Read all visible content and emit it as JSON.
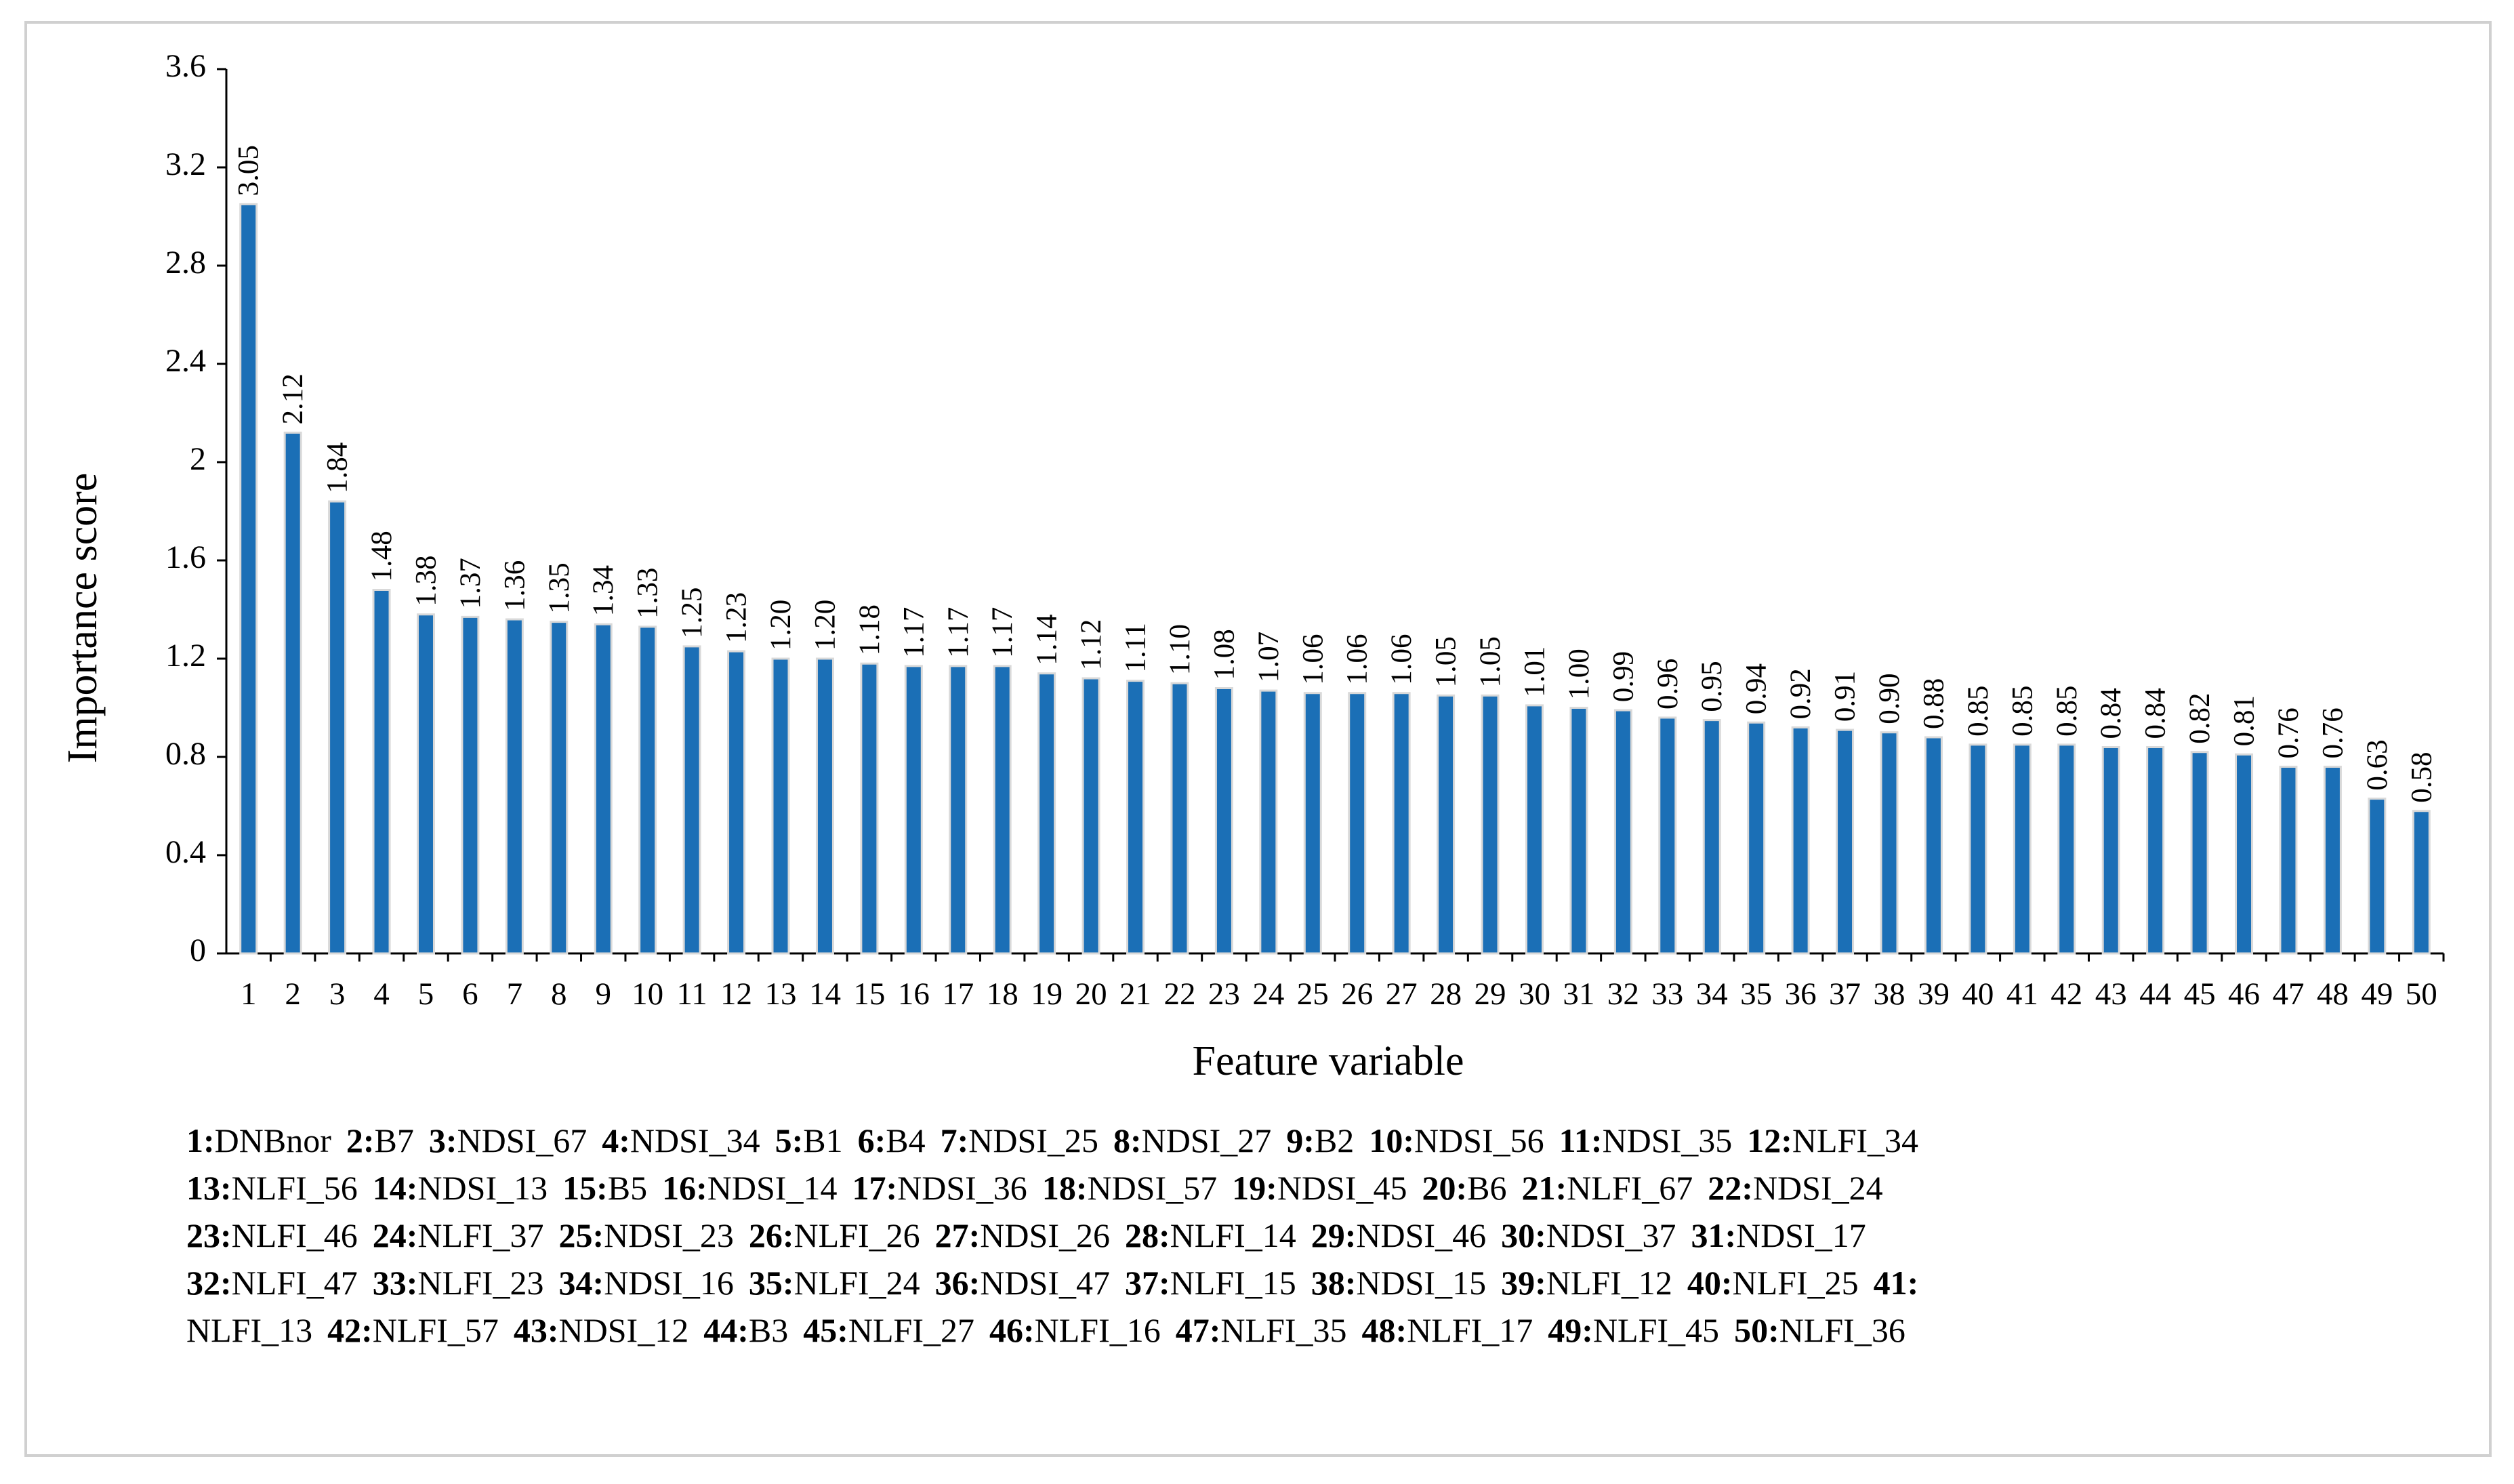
{
  "chart_data": {
    "type": "bar",
    "x_label": "Feature variable",
    "y_label": "Importance score",
    "categories": [
      "1",
      "2",
      "3",
      "4",
      "5",
      "6",
      "7",
      "8",
      "9",
      "10",
      "11",
      "12",
      "13",
      "14",
      "15",
      "16",
      "17",
      "18",
      "19",
      "20",
      "21",
      "22",
      "23",
      "24",
      "25",
      "26",
      "27",
      "28",
      "29",
      "30",
      "31",
      "32",
      "33",
      "34",
      "35",
      "36",
      "37",
      "38",
      "39",
      "40",
      "41",
      "42",
      "43",
      "44",
      "45",
      "46",
      "47",
      "48",
      "49",
      "50"
    ],
    "values": [
      3.05,
      2.12,
      1.84,
      1.48,
      1.38,
      1.37,
      1.36,
      1.35,
      1.34,
      1.33,
      1.25,
      1.23,
      1.2,
      1.2,
      1.18,
      1.17,
      1.17,
      1.17,
      1.14,
      1.12,
      1.11,
      1.1,
      1.08,
      1.07,
      1.06,
      1.06,
      1.06,
      1.05,
      1.05,
      1.01,
      1.0,
      0.99,
      0.96,
      0.95,
      0.94,
      0.92,
      0.91,
      0.9,
      0.88,
      0.85,
      0.85,
      0.85,
      0.84,
      0.84,
      0.82,
      0.81,
      0.76,
      0.76,
      0.63,
      0.58
    ],
    "value_labels": [
      "3.05",
      "2.12",
      "1.84",
      "1.48",
      "1.38",
      "1.37",
      "1.36",
      "1.35",
      "1.34",
      "1.33",
      "1.25",
      "1.23",
      "1.20",
      "1.20",
      "1.18",
      "1.17",
      "1.17",
      "1.17",
      "1.14",
      "1.12",
      "1.11",
      "1.10",
      "1.08",
      "1.07",
      "1.06",
      "1.06",
      "1.06",
      "1.05",
      "1.05",
      "1.01",
      "1.00",
      "0.99",
      "0.96",
      "0.95",
      "0.94",
      "0.92",
      "0.91",
      "0.90",
      "0.88",
      "0.85",
      "0.85",
      "0.85",
      "0.84",
      "0.84",
      "0.82",
      "0.81",
      "0.76",
      "0.76",
      "0.63",
      "0.58"
    ],
    "color": "#1b6fb6",
    "ylim": [
      0,
      3.6
    ],
    "yticks": [
      0,
      0.4,
      0.8,
      1.2,
      1.6,
      2,
      2.4,
      2.8,
      3.2,
      3.6
    ],
    "notes": [
      [
        {
          "key": "1:",
          "label": "DNBnor"
        },
        {
          "key": "2:",
          "label": "B7"
        },
        {
          "key": "3:",
          "label": "NDSI_67"
        },
        {
          "key": "4:",
          "label": "NDSI_34"
        },
        {
          "key": "5:",
          "label": "B1"
        },
        {
          "key": "6:",
          "label": "B4"
        },
        {
          "key": "7:",
          "label": "NDSI_25"
        },
        {
          "key": "8:",
          "label": "NDSI_27"
        },
        {
          "key": "9:",
          "label": "B2"
        },
        {
          "key": "10:",
          "label": "NDSI_56"
        },
        {
          "key": "11:",
          "label": "NDSI_35"
        },
        {
          "key": "12:",
          "label": "NLFI_34"
        }
      ],
      [
        {
          "key": "13:",
          "label": "NLFI_56"
        },
        {
          "key": "14:",
          "label": "NDSI_13"
        },
        {
          "key": "15:",
          "label": "B5"
        },
        {
          "key": "16:",
          "label": "NDSI_14"
        },
        {
          "key": "17:",
          "label": "NDSI_36"
        },
        {
          "key": "18:",
          "label": "NDSI_57"
        },
        {
          "key": "19:",
          "label": "NDSI_45"
        },
        {
          "key": "20:",
          "label": "B6"
        },
        {
          "key": "21:",
          "label": "NLFI_67"
        },
        {
          "key": "22:",
          "label": "NDSI_24"
        }
      ],
      [
        {
          "key": "23:",
          "label": "NLFI_46"
        },
        {
          "key": "24:",
          "label": "NLFI_37"
        },
        {
          "key": "25:",
          "label": "NDSI_23"
        },
        {
          "key": "26:",
          "label": "NLFI_26"
        },
        {
          "key": "27:",
          "label": "NDSI_26"
        },
        {
          "key": "28:",
          "label": "NLFI_14"
        },
        {
          "key": "29:",
          "label": "NDSI_46"
        },
        {
          "key": "30:",
          "label": "NDSI_37"
        },
        {
          "key": "31:",
          "label": "NDSI_17"
        }
      ],
      [
        {
          "key": "32:",
          "label": "NLFI_47"
        },
        {
          "key": "33:",
          "label": "NLFI_23"
        },
        {
          "key": "34:",
          "label": "NDSI_16"
        },
        {
          "key": "35:",
          "label": "NLFI_24"
        },
        {
          "key": "36:",
          "label": "NDSI_47"
        },
        {
          "key": "37:",
          "label": "NLFI_15"
        },
        {
          "key": "38:",
          "label": "NDSI_15"
        },
        {
          "key": "39:",
          "label": "NLFI_12"
        },
        {
          "key": "40:",
          "label": "NLFI_25"
        },
        {
          "key": "41:"
        }
      ],
      [
        {
          "label": "NLFI_13"
        },
        {
          "key": "42:",
          "label": "NLFI_57"
        },
        {
          "key": "43:",
          "label": "NDSI_12"
        },
        {
          "key": "44:",
          "label": "B3"
        },
        {
          "key": "45:",
          "label": "NLFI_27"
        },
        {
          "key": "46:",
          "label": "NLFI_16"
        },
        {
          "key": "47:",
          "label": "NLFI_35"
        },
        {
          "key": "48:",
          "label": "NLFI_17"
        },
        {
          "key": "49:",
          "label": "NLFI_45"
        },
        {
          "key": "50:",
          "label": "NLFI_36"
        }
      ]
    ]
  }
}
